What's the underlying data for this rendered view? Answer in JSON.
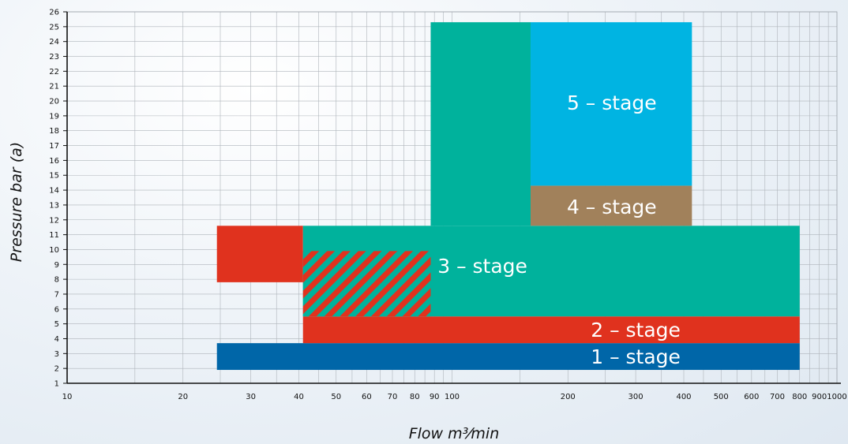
{
  "chart_data": {
    "type": "area",
    "x_scale": "log",
    "xlim": [
      10,
      1000
    ],
    "ylim": [
      1,
      26
    ],
    "grid": true,
    "xlabel": "Flow m³⁄min",
    "ylabel": "Pressure  bar (a)",
    "x_ticks": [
      {
        "value": 10,
        "label": "10"
      },
      {
        "value": 20,
        "label": "20"
      },
      {
        "value": 30,
        "label": "30"
      },
      {
        "value": 40,
        "label": "40"
      },
      {
        "value": 50,
        "label": "50"
      },
      {
        "value": 60,
        "label": "60"
      },
      {
        "value": 70,
        "label": "70"
      },
      {
        "value": 80,
        "label": "80"
      },
      {
        "value": 90,
        "label": "90"
      },
      {
        "value": 100,
        "label": "100"
      },
      {
        "value": 200,
        "label": "200"
      },
      {
        "value": 300,
        "label": "300"
      },
      {
        "value": 400,
        "label": "400"
      },
      {
        "value": 500,
        "label": "500"
      },
      {
        "value": 600,
        "label": "600"
      },
      {
        "value": 700,
        "label": "700"
      },
      {
        "value": 800,
        "label": "800"
      },
      {
        "value": 900,
        "label": "900"
      },
      {
        "value": 1000,
        "label": "1000"
      }
    ],
    "y_ticks": [
      1,
      2,
      3,
      4,
      5,
      6,
      7,
      8,
      9,
      10,
      11,
      12,
      13,
      14,
      15,
      16,
      17,
      18,
      19,
      20,
      21,
      22,
      23,
      24,
      25,
      26
    ],
    "regions": [
      {
        "id": "stage-1",
        "color": "#0066a8",
        "rects": [
          [
            24.5,
            800,
            1.9,
            3.7
          ]
        ]
      },
      {
        "id": "stage-2",
        "color": "#e0321e",
        "rects": [
          [
            24.5,
            41,
            7.8,
            11.6
          ],
          [
            41,
            800,
            3.7,
            5.5
          ]
        ]
      },
      {
        "id": "stage-3",
        "color": "#00b29c",
        "rects": [
          [
            41,
            800,
            5.5,
            11.6
          ],
          [
            88,
            160,
            11.6,
            25.3
          ]
        ]
      },
      {
        "id": "stage-4",
        "color": "#a1815b",
        "rects": [
          [
            160,
            420,
            11.6,
            14.3
          ]
        ]
      },
      {
        "id": "stage-5",
        "color": "#00b4e2",
        "rects": [
          [
            160,
            420,
            14.3,
            25.3
          ]
        ]
      }
    ],
    "hatch": {
      "x": [
        41,
        88
      ],
      "y": [
        5.5,
        9.9
      ],
      "colors": [
        "#e0321e",
        "#00b29c"
      ]
    },
    "labels": [
      {
        "text": "1 – stage",
        "x": 300,
        "y": 2.8
      },
      {
        "text": "2 – stage",
        "x": 300,
        "y": 4.6
      },
      {
        "text": "3 – stage",
        "x": 120,
        "y": 8.9
      },
      {
        "text": "4 – stage",
        "x": 260,
        "y": 12.9
      },
      {
        "text": "5 – stage",
        "x": 260,
        "y": 19.9
      }
    ]
  }
}
